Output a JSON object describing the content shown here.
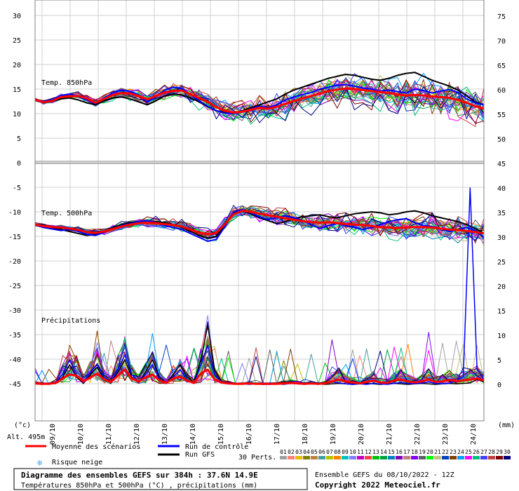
{
  "chart_data": {
    "type": "line",
    "left_axis_unit": "(°c)",
    "right_axis_unit": "(mm)",
    "left_ticks": [
      "30",
      "25",
      "20",
      "15",
      "10",
      "5",
      "0",
      "-5",
      "-10",
      "-15",
      "-20",
      "-25",
      "-30",
      "-35",
      "-40",
      "-45"
    ],
    "right_ticks_top": [
      "75",
      "70",
      "65",
      "60",
      "55",
      "50",
      "45"
    ],
    "right_ticks_bottom": [
      "40",
      "35",
      "30",
      "25",
      "20",
      "15",
      "10",
      "5",
      "0"
    ],
    "x_ticks": [
      "09/10",
      "10/10",
      "11/10",
      "12/10",
      "13/10",
      "14/10",
      "15/10",
      "16/10",
      "17/10",
      "18/10",
      "19/10",
      "20/10",
      "21/10",
      "22/10",
      "23/10",
      "24/10"
    ],
    "panel_labels": {
      "t850": "Temp. 850hPa",
      "t500": "Temp. 500hPa",
      "precip": "Précipitations"
    },
    "altitude": "Alt. 495m",
    "legend": {
      "mean": "Moyenne des scénarios",
      "control": "Run de contrôle",
      "gfs": "Run GFS",
      "snow": "Risque neige",
      "perts_label": "30 Perts.",
      "perts": [
        "01",
        "02",
        "03",
        "04",
        "05",
        "06",
        "07",
        "08",
        "09",
        "10",
        "11",
        "12",
        "13",
        "14",
        "15",
        "16",
        "17",
        "18",
        "19",
        "20",
        "21",
        "22",
        "23",
        "24",
        "25",
        "26",
        "27",
        "28",
        "29",
        "30"
      ]
    },
    "colors": {
      "mean": "#ff0000",
      "control": "#0000ff",
      "gfs": "#000000",
      "snow": "#4aa8e8",
      "perts": [
        "#a0a0a0",
        "#ff8080",
        "#e0c000",
        "#808000",
        "#c08040",
        "#40a0a0",
        "#c0c000",
        "#ff8000",
        "#00c0c0",
        "#8080ff",
        "#c000c0",
        "#ff4040",
        "#00c000",
        "#00a040",
        "#0080c0",
        "#8000c0",
        "#c08080",
        "#8000ff",
        "#606060",
        "#00ff00",
        "#c0c080",
        "#0040c0",
        "#804000",
        "#00a0ff",
        "#ff00ff",
        "#00c080",
        "#4040ff",
        "#c04040",
        "#800000",
        "#000080"
      ]
    },
    "mean_t850": [
      12.8,
      12.3,
      12.6,
      13.4,
      13.5,
      13.6,
      13.1,
      12.2,
      13.0,
      13.8,
      14.2,
      14.1,
      13.6,
      12.9,
      13.6,
      14.3,
      14.6,
      14.7,
      13.9,
      13.2,
      12.4,
      11.3,
      10.6,
      10.2,
      10.4,
      10.8,
      11.2,
      11.0,
      11.4,
      12.0,
      12.6,
      13.1,
      13.6,
      14.1,
      14.6,
      14.9,
      15.1,
      15.0,
      14.8,
      14.6,
      14.4,
      14.2,
      13.9,
      13.7,
      13.8,
      13.7,
      13.5,
      13.4,
      13.2,
      12.8,
      12.2,
      11.5,
      11.0
    ],
    "control_t850": [
      12.8,
      12.4,
      12.8,
      13.7,
      14.0,
      13.5,
      12.8,
      12.0,
      13.2,
      14.2,
      14.8,
      14.5,
      13.8,
      12.4,
      13.4,
      14.8,
      15.4,
      15.1,
      13.9,
      12.6,
      11.5,
      10.6,
      10.1,
      10.0,
      10.3,
      11.0,
      11.5,
      11.2,
      11.8,
      12.8,
      13.4,
      13.9,
      14.3,
      15.0,
      15.4,
      15.8,
      15.9,
      15.6,
      15.2,
      15.0,
      14.6,
      14.8,
      14.5,
      14.2,
      15.0,
      14.7,
      14.2,
      14.6,
      14.9,
      14.3,
      13.0,
      12.2,
      11.8
    ],
    "gfs_t850": [
      12.8,
      12.2,
      12.5,
      13.0,
      13.2,
      12.8,
      12.2,
      11.8,
      12.6,
      13.2,
      13.4,
      13.0,
      12.4,
      11.8,
      12.6,
      13.6,
      14.0,
      13.8,
      13.2,
      12.4,
      11.4,
      10.6,
      10.2,
      10.1,
      10.6,
      11.2,
      11.8,
      12.4,
      13.0,
      14.0,
      14.8,
      15.4,
      16.0,
      16.6,
      17.2,
      17.6,
      18.0,
      17.8,
      17.4,
      17.0,
      16.8,
      17.2,
      17.8,
      18.2,
      18.4,
      17.6,
      16.8,
      16.2,
      15.6,
      14.8,
      13.6,
      12.4,
      11.8
    ],
    "mean_t500": [
      -12.6,
      -12.9,
      -13.1,
      -13.2,
      -13.4,
      -13.7,
      -14.1,
      -14.3,
      -14.0,
      -13.5,
      -13.0,
      -12.6,
      -12.3,
      -12.2,
      -12.3,
      -12.5,
      -12.7,
      -13.0,
      -13.6,
      -14.2,
      -14.6,
      -14.3,
      -12.5,
      -10.5,
      -9.8,
      -10.0,
      -10.4,
      -10.7,
      -11.0,
      -11.3,
      -11.6,
      -11.9,
      -12.1,
      -12.2,
      -12.1,
      -12.3,
      -12.5,
      -12.6,
      -12.7,
      -12.9,
      -13.1,
      -13.2,
      -13.3,
      -13.2,
      -13.1,
      -13.1,
      -13.2,
      -13.4,
      -13.6,
      -13.7,
      -13.9,
      -14.1,
      -14.4
    ],
    "control_t500": [
      -12.6,
      -13.2,
      -13.5,
      -13.8,
      -13.6,
      -14.0,
      -14.6,
      -14.8,
      -14.2,
      -13.4,
      -12.8,
      -12.4,
      -12.0,
      -11.8,
      -12.2,
      -12.8,
      -13.2,
      -13.6,
      -14.4,
      -15.2,
      -16.0,
      -15.6,
      -13.0,
      -10.0,
      -9.6,
      -10.2,
      -11.0,
      -11.6,
      -11.2,
      -10.8,
      -11.2,
      -11.8,
      -12.6,
      -13.4,
      -12.8,
      -12.4,
      -12.8,
      -13.2,
      -13.6,
      -13.2,
      -12.6,
      -12.0,
      -11.6,
      -11.4,
      -12.2,
      -12.8,
      -13.0,
      -13.4,
      -14.0,
      -13.6,
      -13.2,
      -13.8,
      -15.2
    ],
    "gfs_t500": [
      -12.6,
      -12.8,
      -13.2,
      -13.6,
      -14.0,
      -14.4,
      -14.8,
      -14.6,
      -14.0,
      -13.2,
      -12.6,
      -12.2,
      -12.0,
      -11.8,
      -12.0,
      -12.2,
      -12.6,
      -13.2,
      -14.0,
      -14.8,
      -15.4,
      -15.0,
      -12.8,
      -10.2,
      -9.8,
      -10.4,
      -11.2,
      -11.8,
      -12.4,
      -12.0,
      -11.4,
      -11.0,
      -10.8,
      -10.6,
      -11.0,
      -11.2,
      -10.8,
      -10.4,
      -10.2,
      -10.0,
      -10.2,
      -10.6,
      -10.4,
      -10.0,
      -9.8,
      -10.2,
      -10.8,
      -11.2,
      -11.6,
      -12.0,
      -12.6,
      -13.4,
      -14.4
    ],
    "mean_precip": [
      0.2,
      0.1,
      0.1,
      0.3,
      1.2,
      2.0,
      1.8,
      0.6,
      1.4,
      2.2,
      1.0,
      0.5,
      1.8,
      3.0,
      1.2,
      0.6,
      1.4,
      2.0,
      0.8,
      0.3,
      1.2,
      1.6,
      0.8,
      0.3,
      2.2,
      3.0,
      1.0,
      0.4,
      0.2,
      0.1,
      0.1,
      0.2,
      0.1,
      0.1,
      0.1,
      0.1,
      0.2,
      0.3,
      0.2,
      0.1,
      0.2,
      0.1,
      0.2,
      0.6,
      1.0,
      0.6,
      0.4,
      0.2,
      0.5,
      0.8,
      0.4,
      0.3,
      0.8,
      1.0,
      0.6,
      0.4,
      0.6,
      1.0,
      0.5,
      0.6,
      0.9,
      0.7,
      0.8,
      1.0,
      1.2,
      0.8
    ],
    "control_precip": [
      0.1,
      0.1,
      0.2,
      0.5,
      2.0,
      5.0,
      2.0,
      0.3,
      2.5,
      4.0,
      1.5,
      0.5,
      3.0,
      6.0,
      2.0,
      0.5,
      2.0,
      4.0,
      1.0,
      0.2,
      1.5,
      3.0,
      1.0,
      0.2,
      4.0,
      8.0,
      2.0,
      0.5,
      0.2,
      0.1,
      0.1,
      0.0,
      0.1,
      0.0,
      0.0,
      0.1,
      0.0,
      0.2,
      0.1,
      0.0,
      0.1,
      0.0,
      0.2,
      0.5,
      0.3,
      0.1,
      0.0,
      0.1,
      0.0,
      0.2,
      0.1,
      0.0,
      0.2,
      0.4,
      0.2,
      0.1,
      0.3,
      0.5,
      0.2,
      0.1,
      0.2,
      0.8,
      1.5,
      40.0,
      3.0,
      1.0
    ],
    "gfs_precip": [
      0.1,
      0.0,
      0.1,
      0.4,
      1.5,
      4.0,
      1.5,
      0.2,
      2.0,
      3.5,
      1.0,
      0.3,
      2.5,
      5.0,
      1.5,
      0.4,
      2.5,
      5.0,
      1.5,
      0.3,
      2.0,
      4.0,
      1.5,
      0.4,
      5.0,
      12.0,
      3.0,
      0.6,
      0.2,
      0.1,
      0.1,
      0.2,
      0.1,
      0.0,
      0.1,
      0.2,
      0.5,
      0.3,
      0.2,
      0.1,
      0.2,
      0.1,
      0.0,
      0.1,
      0.2,
      0.1,
      0.0,
      0.1,
      0.2,
      0.1,
      0.0,
      0.1,
      0.2,
      0.1,
      0.0,
      0.1,
      0.2,
      0.1,
      0.0,
      0.1,
      0.2,
      0.1,
      0.2,
      0.3,
      1.0,
      0.5
    ]
  },
  "footer": {
    "title": "Diagramme des ensembles GEFS sur 384h : 37.6N 14.9E",
    "subtitle": "Températures 850hPa et 500hPa (°C) , précipitations (mm)",
    "run": "Ensemble GEFS du 08/10/2022 - 12Z",
    "copyright": "Copyright 2022 Meteociel.fr"
  }
}
